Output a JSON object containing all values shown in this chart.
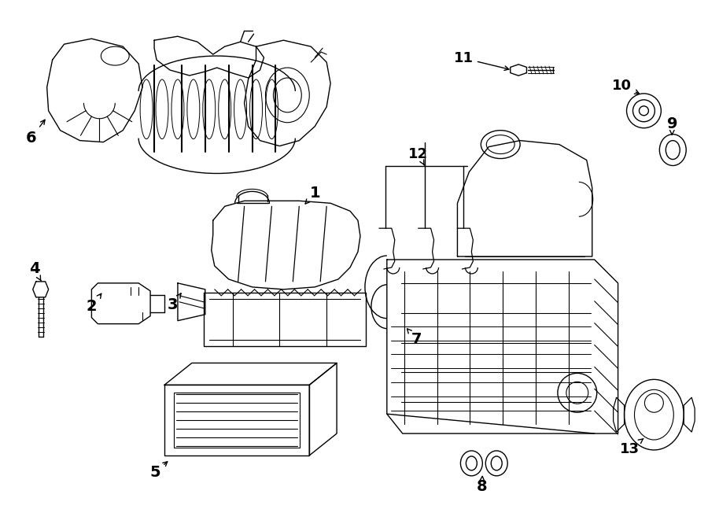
{
  "background_color": "#ffffff",
  "line_color": "#000000",
  "fig_width": 9.0,
  "fig_height": 6.61,
  "dpi": 100,
  "lw": 1.0
}
